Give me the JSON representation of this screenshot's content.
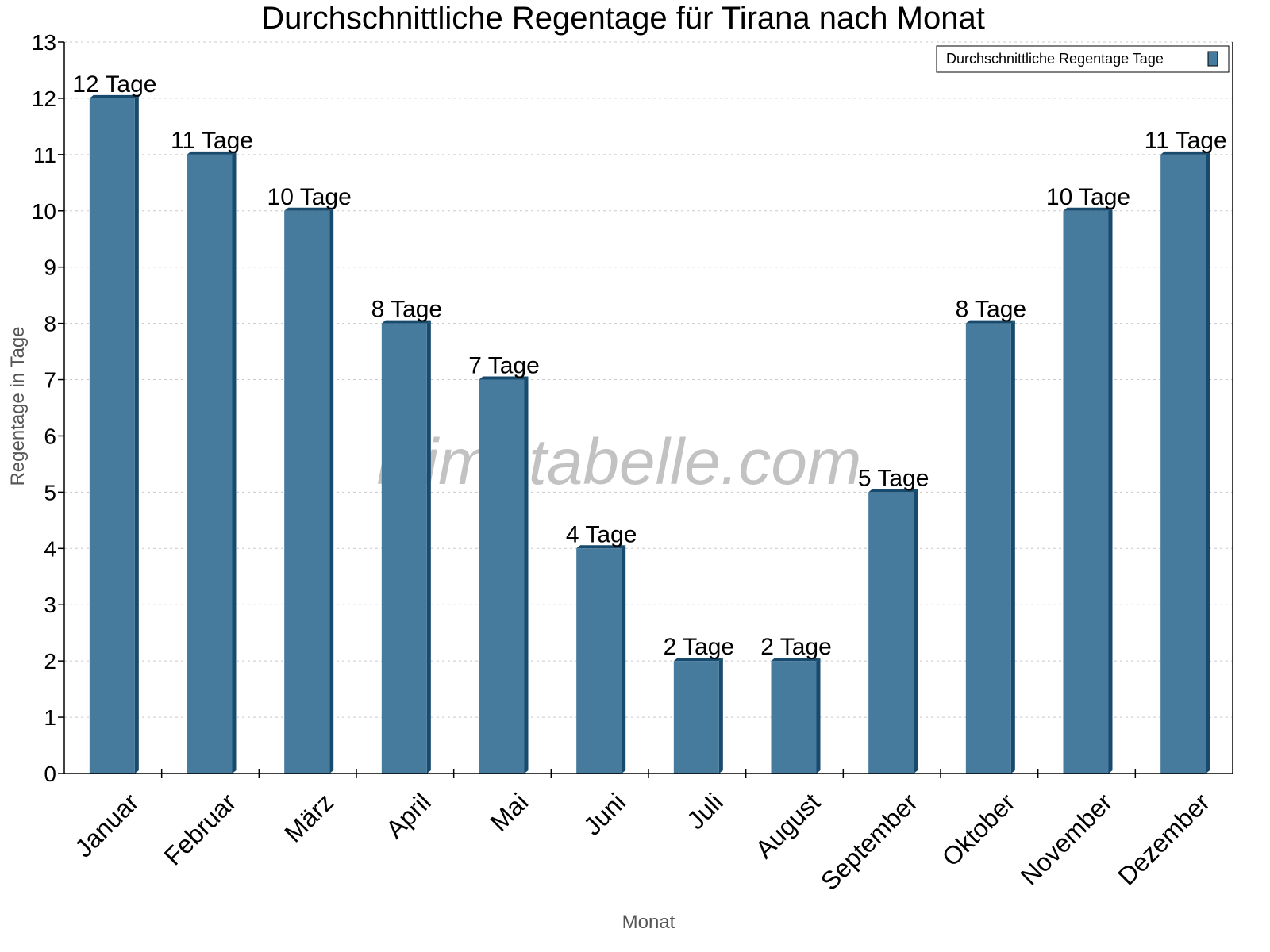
{
  "chart_data": {
    "type": "bar",
    "title": "Durchschnittliche Regentage für Tirana nach Monat",
    "xlabel": "Monat",
    "ylabel": "Regentage in Tage",
    "categories": [
      "Januar",
      "Februar",
      "März",
      "April",
      "Mai",
      "Juni",
      "Juli",
      "August",
      "September",
      "Oktober",
      "November",
      "Dezember"
    ],
    "series": [
      {
        "name": "Durchschnittliche Regentage Tage",
        "values": [
          12,
          11,
          10,
          8,
          7,
          4,
          2,
          2,
          5,
          8,
          10,
          11
        ]
      }
    ],
    "data_labels": [
      "12 Tage",
      "11 Tage",
      "10 Tage",
      "8 Tage",
      "7 Tage",
      "4 Tage",
      "2 Tage",
      "2 Tage",
      "5 Tage",
      "8 Tage",
      "10 Tage",
      "11 Tage"
    ],
    "ylim": [
      0,
      13
    ],
    "yticks": [
      0,
      1,
      2,
      3,
      4,
      5,
      6,
      7,
      8,
      9,
      10,
      11,
      12,
      13
    ],
    "grid": true,
    "legend_position": "top-right",
    "watermark": "klimatabelle.com",
    "colors": {
      "bar": "#467b9d",
      "bar_side": "#174a6c",
      "grid": "#c8c8c8",
      "axis_title": "#555555"
    }
  }
}
